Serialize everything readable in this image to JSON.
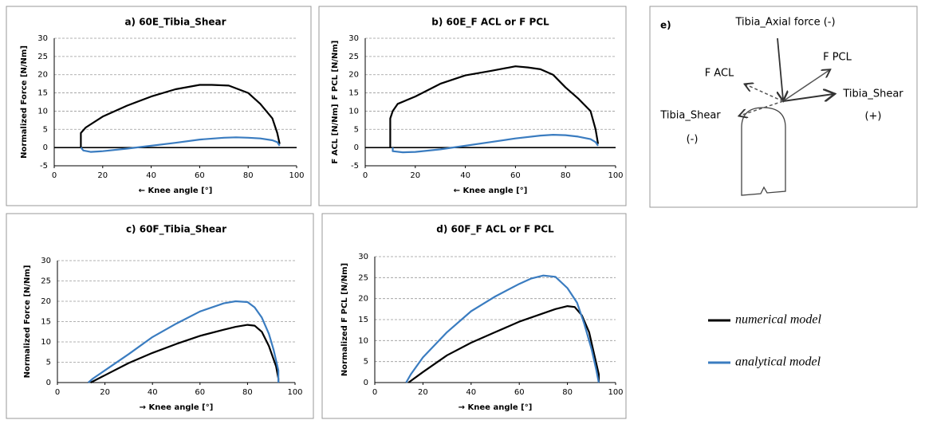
{
  "chart_data": [
    {
      "type": "line",
      "title": "a) 60E_Tibia_Shear",
      "xlabel": "← Knee angle [°]",
      "ylabel": [
        "Normalized Force [N/Nm]"
      ],
      "xlim": [
        0,
        100
      ],
      "xticks": [
        0,
        20,
        40,
        60,
        80,
        100
      ],
      "ylim": [
        -5,
        30
      ],
      "yticks": [
        -5,
        0,
        5,
        10,
        15,
        20,
        25,
        30
      ],
      "grid": true,
      "zero_line": true,
      "series": [
        {
          "color": "#000000",
          "x": [
            11,
            11,
            13,
            20,
            30,
            40,
            50,
            60,
            65,
            72,
            80,
            85,
            90,
            92,
            93
          ],
          "values": [
            0,
            4,
            5.5,
            8.5,
            11.5,
            14,
            16,
            17.2,
            17.2,
            17,
            15,
            12,
            8,
            4,
            1
          ]
        },
        {
          "color": "#3a7cc0",
          "x": [
            11,
            12,
            15,
            20,
            30,
            40,
            50,
            60,
            70,
            75,
            80,
            85,
            90,
            92,
            93
          ],
          "values": [
            0,
            -0.8,
            -1.2,
            -1,
            -0.3,
            0.5,
            1.3,
            2.2,
            2.7,
            2.8,
            2.7,
            2.5,
            2,
            1.5,
            0.5
          ]
        }
      ]
    },
    {
      "type": "line",
      "title": "b) 60E_F ACL or F PCL",
      "xlabel": "← Knee angle [°]",
      "ylabel": [
        "F ACL [N/Nm]",
        "F PCL [N/Nm]"
      ],
      "xlim": [
        0,
        100
      ],
      "xticks": [
        0,
        20,
        40,
        60,
        80,
        100
      ],
      "ylim": [
        -5,
        30
      ],
      "yticks": [
        -5,
        0,
        5,
        10,
        15,
        20,
        25,
        30
      ],
      "grid": true,
      "zero_line": true,
      "series": [
        {
          "color": "#000000",
          "x": [
            10,
            10,
            11,
            13,
            20,
            30,
            40,
            50,
            60,
            65,
            70,
            75,
            80,
            85,
            90,
            92,
            93
          ],
          "values": [
            0,
            8,
            10,
            12,
            14,
            17.5,
            19.8,
            21,
            22.3,
            22,
            21.5,
            20,
            16.5,
            13.5,
            10,
            5,
            1
          ]
        },
        {
          "color": "#3a7cc0",
          "x": [
            11,
            11,
            15,
            20,
            30,
            40,
            50,
            60,
            70,
            75,
            80,
            85,
            90,
            92,
            93
          ],
          "values": [
            0,
            -1,
            -1.3,
            -1.2,
            -0.5,
            0.5,
            1.5,
            2.5,
            3.3,
            3.5,
            3.4,
            3,
            2.3,
            1.5,
            0.5
          ]
        }
      ]
    },
    {
      "type": "line",
      "title": "c) 60F_Tibia_Shear",
      "xlabel": "→ Knee angle [°]",
      "ylabel": [
        "Normalized Force [N/Nm]"
      ],
      "xlim": [
        0,
        100
      ],
      "xticks": [
        0,
        20,
        40,
        60,
        80,
        100
      ],
      "ylim": [
        0,
        30
      ],
      "yticks": [
        0,
        5,
        10,
        15,
        20,
        25,
        30
      ],
      "grid": true,
      "zero_line": false,
      "series": [
        {
          "color": "#000000",
          "x": [
            14,
            20,
            30,
            40,
            50,
            60,
            70,
            75,
            80,
            83,
            86,
            89,
            92,
            93,
            93
          ],
          "values": [
            0,
            1.8,
            4.8,
            7.3,
            9.5,
            11.5,
            13,
            13.7,
            14.2,
            14,
            12.5,
            9,
            4,
            1,
            0
          ]
        },
        {
          "color": "#3a7cc0",
          "x": [
            13,
            15,
            20,
            30,
            40,
            50,
            60,
            70,
            75,
            80,
            83,
            86,
            89,
            91,
            93,
            93
          ],
          "values": [
            0,
            1,
            3,
            7,
            11.2,
            14.5,
            17.5,
            19.5,
            20,
            19.8,
            18.5,
            16,
            12,
            8,
            3,
            0
          ]
        }
      ]
    },
    {
      "type": "line",
      "title": "d) 60F_F ACL or F PCL",
      "xlabel": "→ Knee angle [°]",
      "ylabel": [
        "Normalized F PCL [N/Nm]"
      ],
      "xlim": [
        0,
        100
      ],
      "xticks": [
        0,
        20,
        40,
        60,
        80,
        100
      ],
      "ylim": [
        0,
        30
      ],
      "yticks": [
        0,
        5,
        10,
        15,
        20,
        25,
        30
      ],
      "grid": true,
      "zero_line": false,
      "series": [
        {
          "color": "#000000",
          "x": [
            14,
            20,
            30,
            40,
            50,
            60,
            70,
            75,
            80,
            83,
            86,
            89,
            91,
            93,
            93
          ],
          "values": [
            0,
            2.5,
            6.5,
            9.5,
            12,
            14.5,
            16.5,
            17.5,
            18.2,
            18,
            16,
            12,
            7,
            2,
            0
          ]
        },
        {
          "color": "#3a7cc0",
          "x": [
            13,
            15,
            20,
            30,
            40,
            50,
            60,
            65,
            70,
            75,
            80,
            84,
            87,
            90,
            92,
            93
          ],
          "values": [
            0,
            2,
            6,
            12,
            17,
            20.5,
            23.5,
            24.8,
            25.5,
            25.2,
            22.5,
            19,
            14,
            8,
            3,
            0
          ]
        }
      ]
    }
  ],
  "legend": [
    {
      "name": "numerical model",
      "color": "#000000"
    },
    {
      "name": "analytical model",
      "color": "#3a7cc0"
    }
  ],
  "diagram": {
    "label": "e)",
    "axial": "Tibia_Axial force (-)",
    "pcl": "F PCL",
    "acl": "F ACL",
    "shear_pos": "Tibia_Shear",
    "shear_pos_sign": "(+)",
    "shear_neg": "Tibia_Shear",
    "shear_neg_sign": "(-)"
  }
}
